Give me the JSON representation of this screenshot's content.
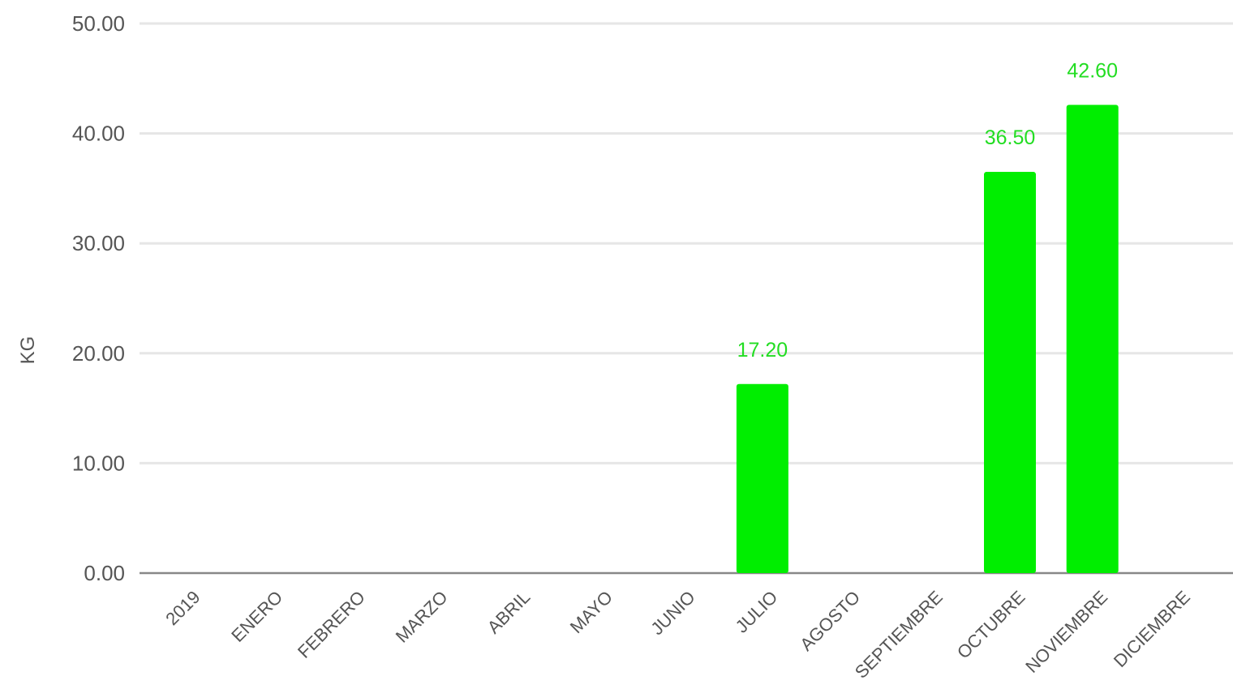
{
  "chart_data": {
    "type": "bar",
    "title": "",
    "xlabel": "",
    "ylabel": "KG",
    "categories": [
      "2019",
      "ENERO",
      "FEBRERO",
      "MARZO",
      "ABRIL",
      "MAYO",
      "JUNIO",
      "JULIO",
      "AGOSTO",
      "SEPTIEMBRE",
      "OCTUBRE",
      "NOVIEMBRE",
      "DICIEMBRE"
    ],
    "values": [
      0,
      0,
      0,
      0,
      0,
      0,
      0,
      17.2,
      0,
      0,
      36.5,
      42.6,
      0
    ],
    "data_labels": [
      "",
      "",
      "",
      "",
      "",
      "",
      "",
      "17.20",
      "",
      "",
      "36.50",
      "42.60",
      ""
    ],
    "yticks": [
      "0.00",
      "10.00",
      "20.00",
      "30.00",
      "40.00",
      "50.00"
    ],
    "ylim": [
      0,
      50
    ],
    "grid": true,
    "legend": "none",
    "colors": {
      "bar": "#00ee00",
      "label": "#22dd22",
      "grid": "#e6e6e6",
      "axis": "#888888",
      "text": "#555555"
    }
  }
}
